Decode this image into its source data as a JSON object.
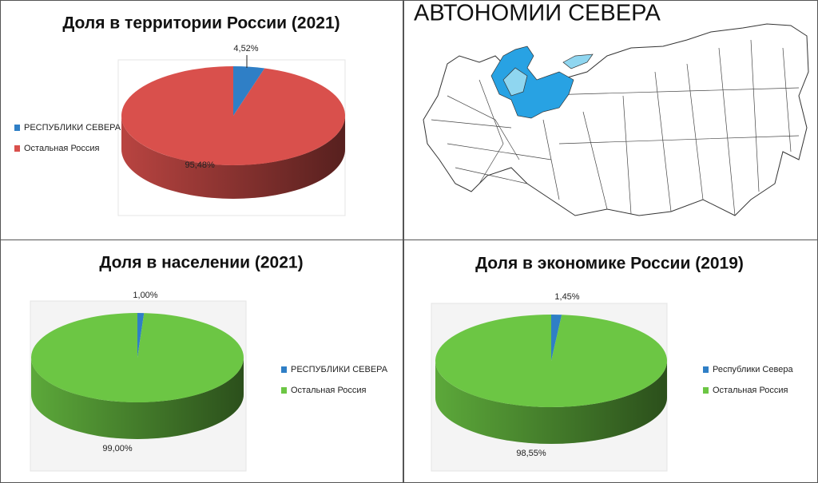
{
  "chart_data": [
    {
      "type": "pie",
      "title": "Доля в территории России (2021)",
      "categories": [
        "РЕСПУБЛИКИ СЕВЕРА",
        "Остальная Россия"
      ],
      "values": [
        4.52,
        95.48
      ],
      "value_labels": [
        "4,52%",
        "95,48%"
      ],
      "colors": [
        "#2f7fc6",
        "#d9504c"
      ]
    },
    {
      "type": "pie",
      "title": "Доля в населении (2021)",
      "categories": [
        "РЕСПУБЛИКИ СЕВЕРА",
        "Остальная Россия"
      ],
      "values": [
        1.0,
        99.0
      ],
      "value_labels": [
        "1,00%",
        "99,00%"
      ],
      "colors": [
        "#2f7fc6",
        "#6cc644"
      ]
    },
    {
      "type": "pie",
      "title": "Доля в экономике России (2019)",
      "categories": [
        "Республики Севера",
        "Остальная Россия"
      ],
      "values": [
        1.45,
        98.55
      ],
      "value_labels": [
        "1,45%",
        "98,55%"
      ],
      "colors": [
        "#2f7fc6",
        "#6cc644"
      ]
    }
  ],
  "map": {
    "title": "АВТОНОМИИ СЕВЕРА"
  }
}
